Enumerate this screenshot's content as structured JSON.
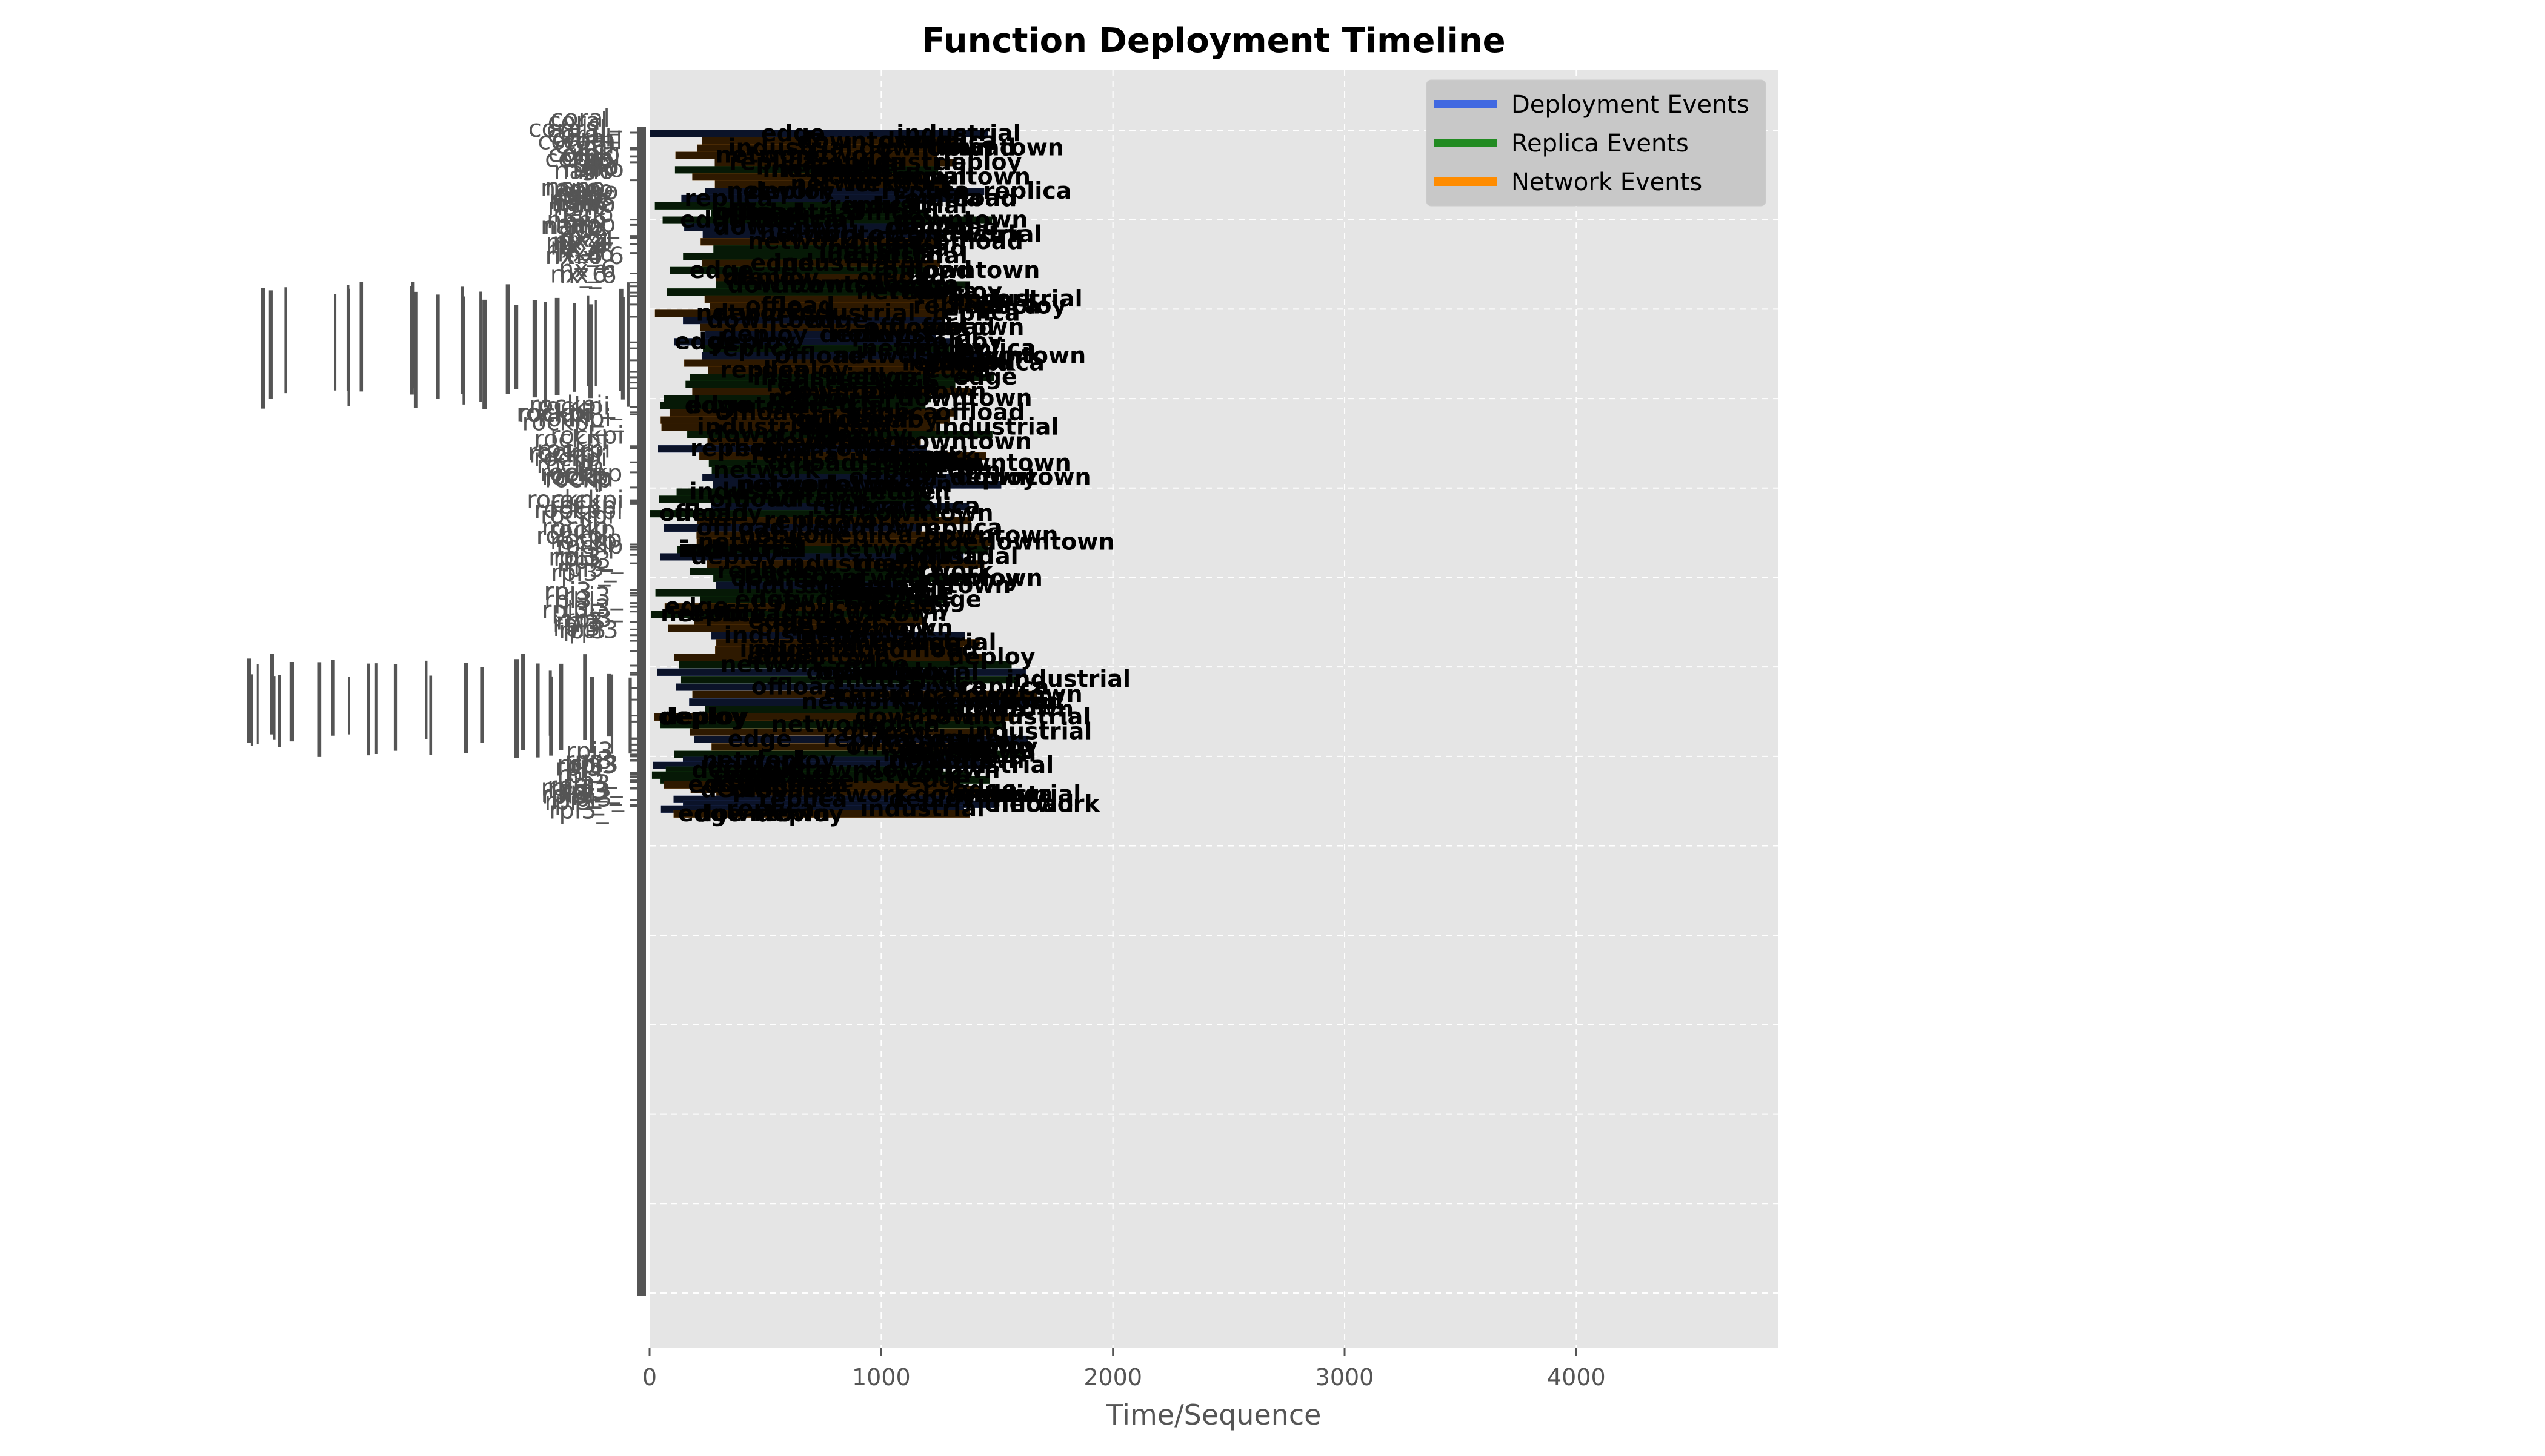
{
  "chart_data": {
    "type": "timeline",
    "title": "Function Deployment Timeline",
    "xlabel": "Time/Sequence",
    "ylabel": "",
    "xlim": [
      0,
      4870
    ],
    "x_ticks": [
      0,
      1000,
      2000,
      3000,
      4000
    ],
    "grid": true,
    "legend_position": "top-right",
    "legend": [
      {
        "name": "Deployment Events",
        "color": "#4169e1"
      },
      {
        "name": "Replica Events",
        "color": "#228b22"
      },
      {
        "name": "Network Events",
        "color": "#ff8c00"
      }
    ],
    "series": [
      {
        "name": "Deployment Events",
        "color": "#4169e1"
      },
      {
        "name": "Replica Events",
        "color": "#228b22"
      },
      {
        "name": "Network Events",
        "color": "#ff8c00"
      }
    ],
    "row_label_groups": [
      {
        "rows": [
          0,
          0.13
        ],
        "labels": [
          "coral_",
          "coral",
          "glo",
          "nano",
          "nanc",
          "nano",
          "nx_",
          "nx_4",
          "nx_6"
        ],
        "extent": [
          1430,
          1490
        ]
      },
      {
        "rows": [
          0.13,
          0.24
        ],
        "labels": [],
        "extent": [
          1450,
          1560
        ]
      },
      {
        "rows": [
          0.24,
          0.37
        ],
        "labels": [
          "rockpi_",
          "rockpi",
          "rockp",
          "rockpi",
          "rockp"
        ],
        "extent": [
          1500,
          1550
        ]
      },
      {
        "rows": [
          0.37,
          0.45
        ],
        "labels": [
          "rpi3_",
          "rpi3_",
          "rpi3"
        ],
        "extent": [
          1100,
          1460
        ]
      },
      {
        "rows": [
          0.45,
          0.54
        ],
        "labels": [],
        "extent": [
          1700,
          1700
        ]
      },
      {
        "rows": [
          0.54,
          0.59
        ],
        "labels": [
          "rpi3",
          "rpi3_",
          "rpi3_"
        ],
        "extent": [
          1300,
          1560
        ]
      }
    ],
    "event_label_words": [
      "deploy",
      "replica",
      "network",
      "industrial",
      "downtown",
      "edge",
      "offload"
    ]
  }
}
